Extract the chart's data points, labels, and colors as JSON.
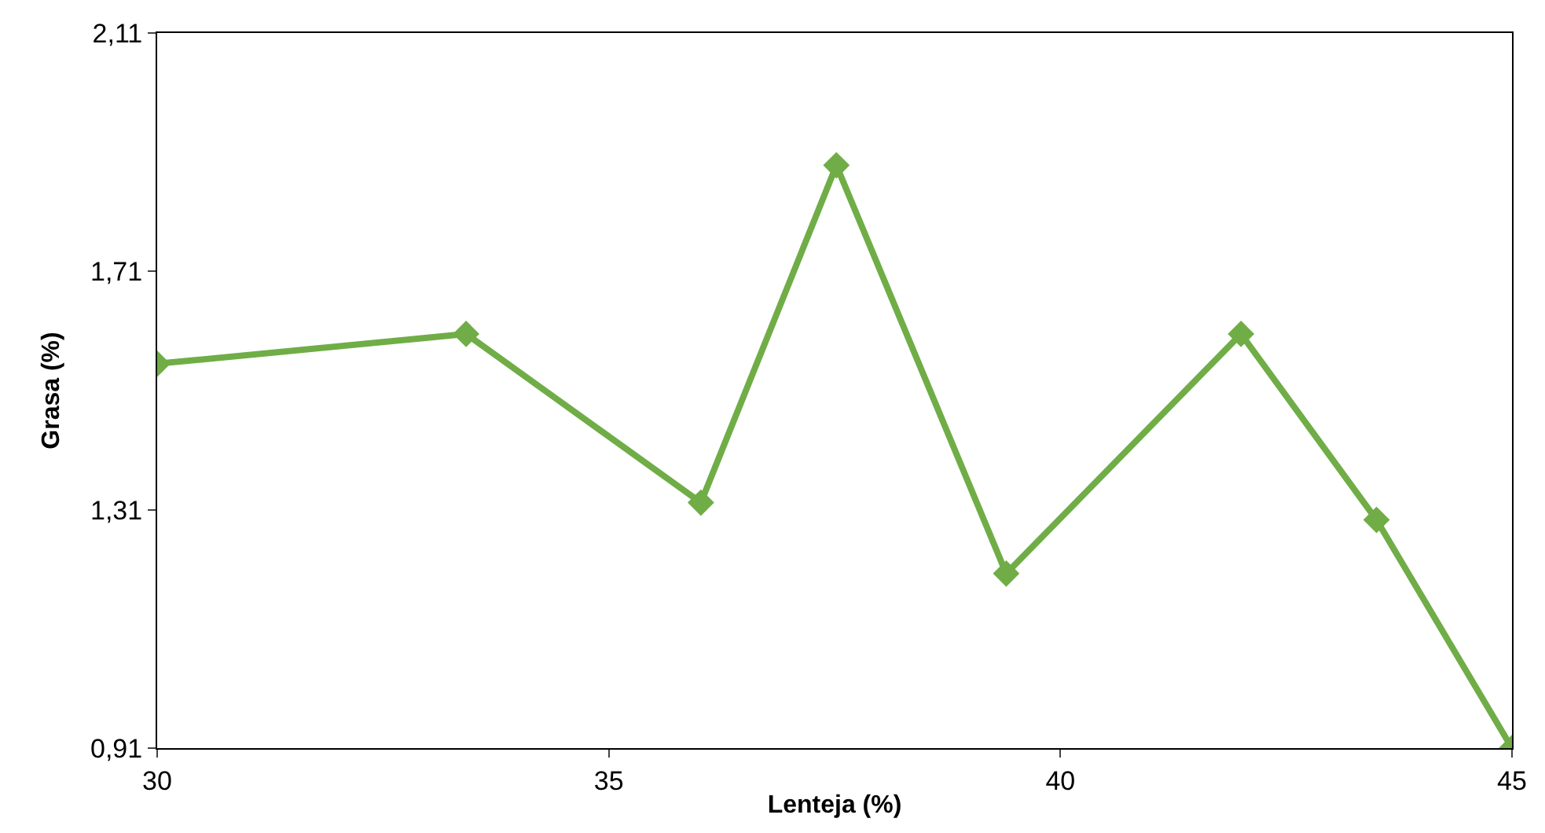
{
  "chart_data": {
    "type": "line",
    "xlabel": "Lenteja (%)",
    "ylabel": "Grasa (%)",
    "x": [
      30,
      33.42,
      36.02,
      37.52,
      39.4,
      42.0,
      43.5,
      45
    ],
    "series": [
      {
        "color": "#70ad47",
        "values": [
          1.555,
          1.605,
          1.322,
          1.888,
          1.203,
          1.605,
          1.293,
          0.91
        ]
      }
    ],
    "xlim": [
      30,
      45
    ],
    "xticks": [
      30,
      35,
      40,
      45
    ],
    "ylim": [
      0.91,
      2.11
    ],
    "yticks": [
      {
        "value": 0.91,
        "label": "0,91"
      },
      {
        "value": 1.31,
        "label": "1,31"
      },
      {
        "value": 1.71,
        "label": "1,71"
      },
      {
        "value": 2.11,
        "label": "2,11"
      }
    ],
    "legend": false,
    "marker": "diamond",
    "line_style": "solid"
  }
}
